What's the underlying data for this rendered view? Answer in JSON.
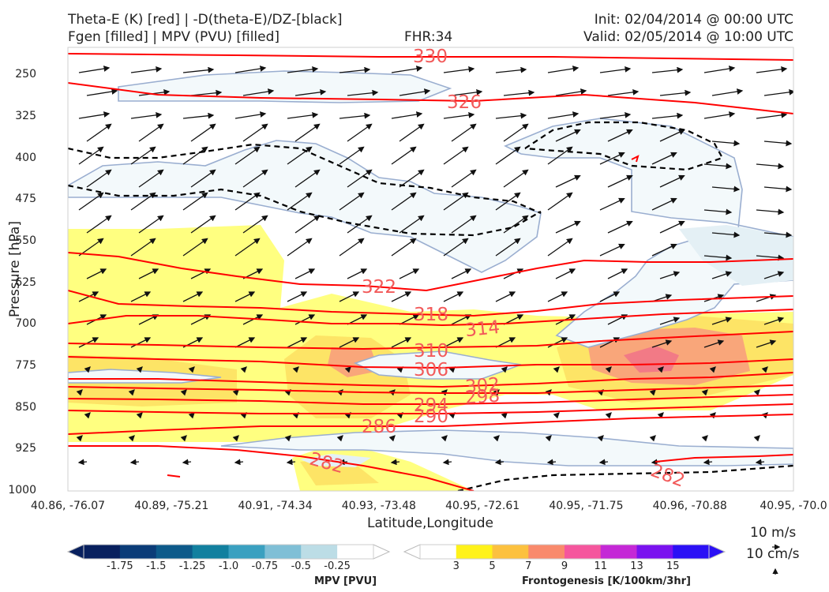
{
  "header": {
    "title_left_1": "Theta-E (K) [red] | -D(theta-E)/DZ-[black]",
    "title_left_2": "Fgen [filled] | MPV (PVU) [filled]",
    "fhr": "FHR:34",
    "init": "Init: 02/04/2014 @ 00:00 UTC",
    "valid": "Valid: 02/05/2014 @ 10:00 UTC"
  },
  "chart_data": {
    "type": "cross-section",
    "ylabel": "Pressure [hPa]",
    "xlabel": "Latitude,Longitude",
    "y_ticks": [
      "250",
      "325",
      "400",
      "475",
      "550",
      "625",
      "700",
      "775",
      "850",
      "925",
      "1000"
    ],
    "ylim": [
      1000,
      200
    ],
    "x_ticks": [
      "40.86, -76.07",
      "40.89, -75.21",
      "40.91, -74.34",
      "40.93, -73.48",
      "40.95, -72.61",
      "40.95, -71.75",
      "40.96, -70.88",
      "40.95, -70.0"
    ],
    "theta_e_contours": [
      {
        "label": "330",
        "p": 205
      },
      {
        "label": "326",
        "p": 258
      },
      {
        "label": "322",
        "p": 630
      },
      {
        "label": "318",
        "p": 680
      },
      {
        "label": "314",
        "p": 712
      },
      {
        "label": "310",
        "p": 750
      },
      {
        "label": "306",
        "p": 776
      },
      {
        "label": "302",
        "p": 806
      },
      {
        "label": "298",
        "p": 815
      },
      {
        "label": "294",
        "p": 840
      },
      {
        "label": "290",
        "p": 853
      },
      {
        "label": "286",
        "p": 877
      },
      {
        "label": "282",
        "p": 962
      }
    ],
    "colors": {
      "theta_e": "#ff0000",
      "label": "#f25a5a",
      "dtheta_dz": "#000000",
      "mpv_outline": "#9aaed0",
      "mpv_fill": "#f3f9fb",
      "fgen_3": "#ffff80",
      "fgen_5": "#fde466",
      "fgen_7": "#f9a67a",
      "fgen_9": "#f27a86"
    },
    "mpv_colorbar": {
      "label": "MPV [PVU]",
      "ticks": [
        "-1.75",
        "-1.5",
        "-1.25",
        "-1.0",
        "-0.75",
        "-0.5",
        "-0.25"
      ],
      "colors": [
        "#08205e",
        "#0b3c78",
        "#0d5a8a",
        "#12809f",
        "#3aa0c0",
        "#7fbfd6",
        "#bcdde6",
        "#ffffff"
      ]
    },
    "fgen_colorbar": {
      "label": "Frontogenesis [K/100km/3hr]",
      "ticks": [
        "3",
        "5",
        "7",
        "9",
        "11",
        "13",
        "15"
      ],
      "colors": [
        "#ffffff",
        "#fff21a",
        "#fcc13f",
        "#f98a6c",
        "#f5569d",
        "#c428d6",
        "#7a12ef",
        "#2b10f5"
      ]
    },
    "vector_key": {
      "horizontal": "10 m/s",
      "vertical": "10 cm/s"
    }
  }
}
